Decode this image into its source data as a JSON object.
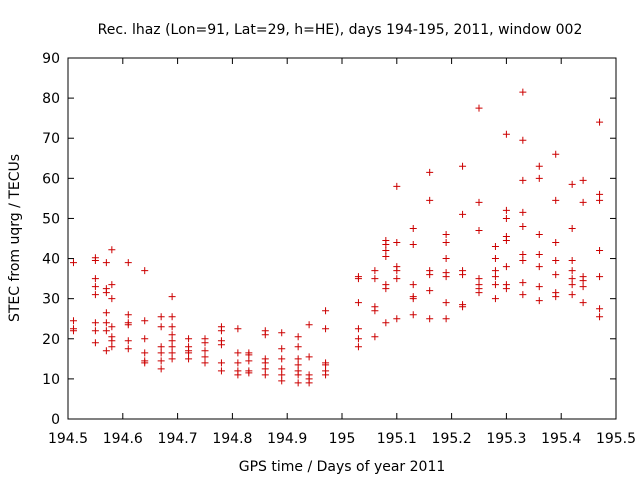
{
  "chart_data": {
    "type": "scatter",
    "title": "Rec. lhaz (Lon=91, Lat=29, h=HE), days 194-195, 2011, window 002",
    "xlabel": "GPS time / Days of year 2011",
    "ylabel": "STEC from uqrg / TECUs",
    "xlim": [
      194.5,
      195.5
    ],
    "ylim": [
      0,
      90
    ],
    "xticks": [
      "194.5",
      "194.6",
      "194.7",
      "194.8",
      "194.9",
      "195",
      "195.1",
      "195.2",
      "195.3",
      "195.4",
      "195.5"
    ],
    "yticks": [
      "0",
      "10",
      "20",
      "30",
      "40",
      "50",
      "60",
      "70",
      "80",
      "90"
    ],
    "grid": false,
    "marker": "plus",
    "color": "#cc0000",
    "points": [
      [
        194.51,
        39.0
      ],
      [
        194.51,
        24.5
      ],
      [
        194.51,
        22.5
      ],
      [
        194.51,
        22.0
      ],
      [
        194.55,
        40.2
      ],
      [
        194.55,
        39.5
      ],
      [
        194.55,
        35.0
      ],
      [
        194.55,
        33.0
      ],
      [
        194.55,
        31.0
      ],
      [
        194.55,
        24.0
      ],
      [
        194.55,
        22.0
      ],
      [
        194.55,
        19.0
      ],
      [
        194.57,
        39.0
      ],
      [
        194.57,
        32.5
      ],
      [
        194.57,
        31.5
      ],
      [
        194.57,
        26.5
      ],
      [
        194.57,
        24.0
      ],
      [
        194.57,
        22.0
      ],
      [
        194.57,
        17.0
      ],
      [
        194.58,
        42.2
      ],
      [
        194.58,
        33.5
      ],
      [
        194.58,
        30.0
      ],
      [
        194.58,
        23.0
      ],
      [
        194.58,
        20.5
      ],
      [
        194.58,
        19.5
      ],
      [
        194.58,
        18.0
      ],
      [
        194.61,
        39.0
      ],
      [
        194.61,
        26.0
      ],
      [
        194.61,
        24.0
      ],
      [
        194.61,
        23.5
      ],
      [
        194.61,
        19.5
      ],
      [
        194.61,
        17.5
      ],
      [
        194.64,
        37.0
      ],
      [
        194.64,
        24.5
      ],
      [
        194.64,
        20.0
      ],
      [
        194.64,
        16.5
      ],
      [
        194.64,
        14.5
      ],
      [
        194.64,
        14.0
      ],
      [
        194.67,
        25.5
      ],
      [
        194.67,
        23.0
      ],
      [
        194.67,
        18.0
      ],
      [
        194.67,
        16.5
      ],
      [
        194.67,
        14.5
      ],
      [
        194.67,
        12.5
      ],
      [
        194.69,
        30.5
      ],
      [
        194.69,
        25.5
      ],
      [
        194.69,
        23.0
      ],
      [
        194.69,
        21.0
      ],
      [
        194.69,
        19.5
      ],
      [
        194.69,
        18.0
      ],
      [
        194.69,
        16.5
      ],
      [
        194.69,
        15.0
      ],
      [
        194.72,
        20.0
      ],
      [
        194.72,
        18.0
      ],
      [
        194.72,
        17.0
      ],
      [
        194.72,
        16.5
      ],
      [
        194.72,
        15.0
      ],
      [
        194.75,
        20.0
      ],
      [
        194.75,
        19.0
      ],
      [
        194.75,
        17.0
      ],
      [
        194.75,
        15.5
      ],
      [
        194.75,
        14.0
      ],
      [
        194.78,
        23.0
      ],
      [
        194.78,
        22.0
      ],
      [
        194.78,
        19.5
      ],
      [
        194.78,
        18.5
      ],
      [
        194.78,
        14.0
      ],
      [
        194.78,
        12.0
      ],
      [
        194.81,
        22.5
      ],
      [
        194.81,
        16.5
      ],
      [
        194.81,
        14.0
      ],
      [
        194.81,
        12.0
      ],
      [
        194.81,
        11.0
      ],
      [
        194.83,
        16.5
      ],
      [
        194.83,
        16.0
      ],
      [
        194.83,
        14.5
      ],
      [
        194.83,
        12.0
      ],
      [
        194.83,
        11.5
      ],
      [
        194.86,
        22.0
      ],
      [
        194.86,
        21.0
      ],
      [
        194.86,
        15.0
      ],
      [
        194.86,
        14.0
      ],
      [
        194.86,
        12.5
      ],
      [
        194.86,
        11.0
      ],
      [
        194.89,
        21.5
      ],
      [
        194.89,
        17.5
      ],
      [
        194.89,
        15.0
      ],
      [
        194.89,
        12.5
      ],
      [
        194.89,
        11.0
      ],
      [
        194.89,
        9.5
      ],
      [
        194.92,
        20.5
      ],
      [
        194.92,
        18.0
      ],
      [
        194.92,
        15.0
      ],
      [
        194.92,
        13.5
      ],
      [
        194.92,
        12.0
      ],
      [
        194.92,
        11.0
      ],
      [
        194.92,
        9.0
      ],
      [
        194.94,
        23.5
      ],
      [
        194.94,
        15.5
      ],
      [
        194.94,
        11.0
      ],
      [
        194.94,
        10.0
      ],
      [
        194.94,
        9.0
      ],
      [
        194.97,
        27.0
      ],
      [
        194.97,
        22.5
      ],
      [
        194.97,
        14.0
      ],
      [
        194.97,
        13.5
      ],
      [
        194.97,
        12.0
      ],
      [
        194.97,
        11.0
      ],
      [
        195.03,
        35.5
      ],
      [
        195.03,
        35.0
      ],
      [
        195.03,
        29.0
      ],
      [
        195.03,
        22.5
      ],
      [
        195.03,
        20.0
      ],
      [
        195.03,
        18.0
      ],
      [
        195.06,
        37.0
      ],
      [
        195.06,
        35.0
      ],
      [
        195.06,
        28.0
      ],
      [
        195.06,
        27.0
      ],
      [
        195.06,
        20.5
      ],
      [
        195.08,
        44.5
      ],
      [
        195.08,
        43.5
      ],
      [
        195.08,
        42.0
      ],
      [
        195.08,
        40.5
      ],
      [
        195.08,
        33.5
      ],
      [
        195.08,
        32.5
      ],
      [
        195.08,
        24.0
      ],
      [
        195.1,
        58.0
      ],
      [
        195.1,
        44.0
      ],
      [
        195.1,
        38.0
      ],
      [
        195.1,
        37.0
      ],
      [
        195.1,
        35.0
      ],
      [
        195.1,
        25.0
      ],
      [
        195.13,
        47.5
      ],
      [
        195.13,
        43.5
      ],
      [
        195.13,
        33.5
      ],
      [
        195.13,
        30.5
      ],
      [
        195.13,
        30.0
      ],
      [
        195.13,
        26.0
      ],
      [
        195.16,
        61.5
      ],
      [
        195.16,
        54.5
      ],
      [
        195.16,
        37.0
      ],
      [
        195.16,
        36.0
      ],
      [
        195.16,
        32.0
      ],
      [
        195.16,
        25.0
      ],
      [
        195.19,
        46.0
      ],
      [
        195.19,
        44.0
      ],
      [
        195.19,
        40.0
      ],
      [
        195.19,
        36.5
      ],
      [
        195.19,
        35.5
      ],
      [
        195.19,
        29.0
      ],
      [
        195.19,
        25.0
      ],
      [
        195.22,
        63.0
      ],
      [
        195.22,
        51.0
      ],
      [
        195.22,
        37.0
      ],
      [
        195.22,
        36.0
      ],
      [
        195.22,
        28.5
      ],
      [
        195.22,
        28.0
      ],
      [
        195.25,
        77.5
      ],
      [
        195.25,
        54.0
      ],
      [
        195.25,
        47.0
      ],
      [
        195.25,
        35.0
      ],
      [
        195.25,
        33.5
      ],
      [
        195.25,
        32.5
      ],
      [
        195.25,
        31.5
      ],
      [
        195.28,
        43.0
      ],
      [
        195.28,
        40.0
      ],
      [
        195.28,
        37.0
      ],
      [
        195.28,
        35.5
      ],
      [
        195.28,
        33.5
      ],
      [
        195.28,
        30.0
      ],
      [
        195.3,
        71.0
      ],
      [
        195.3,
        52.0
      ],
      [
        195.3,
        50.0
      ],
      [
        195.3,
        45.5
      ],
      [
        195.3,
        44.5
      ],
      [
        195.3,
        38.0
      ],
      [
        195.3,
        33.5
      ],
      [
        195.3,
        32.5
      ],
      [
        195.33,
        81.5
      ],
      [
        195.33,
        69.5
      ],
      [
        195.33,
        59.5
      ],
      [
        195.33,
        51.5
      ],
      [
        195.33,
        48.0
      ],
      [
        195.33,
        41.0
      ],
      [
        195.33,
        39.5
      ],
      [
        195.33,
        34.0
      ],
      [
        195.33,
        31.0
      ],
      [
        195.36,
        63.0
      ],
      [
        195.36,
        60.0
      ],
      [
        195.36,
        46.0
      ],
      [
        195.36,
        41.0
      ],
      [
        195.36,
        38.0
      ],
      [
        195.36,
        33.0
      ],
      [
        195.36,
        29.5
      ],
      [
        195.39,
        66.0
      ],
      [
        195.39,
        54.5
      ],
      [
        195.39,
        44.0
      ],
      [
        195.39,
        39.5
      ],
      [
        195.39,
        36.0
      ],
      [
        195.39,
        31.5
      ],
      [
        195.39,
        30.5
      ],
      [
        195.42,
        58.5
      ],
      [
        195.42,
        47.5
      ],
      [
        195.42,
        39.5
      ],
      [
        195.42,
        37.0
      ],
      [
        195.42,
        35.0
      ],
      [
        195.42,
        33.5
      ],
      [
        195.42,
        31.0
      ],
      [
        195.44,
        59.5
      ],
      [
        195.44,
        54.0
      ],
      [
        195.44,
        35.5
      ],
      [
        195.44,
        34.5
      ],
      [
        195.44,
        33.0
      ],
      [
        195.44,
        29.0
      ],
      [
        195.47,
        74.0
      ],
      [
        195.47,
        56.0
      ],
      [
        195.47,
        54.5
      ],
      [
        195.47,
        42.0
      ],
      [
        195.47,
        35.5
      ],
      [
        195.47,
        27.5
      ],
      [
        195.47,
        25.5
      ]
    ]
  }
}
